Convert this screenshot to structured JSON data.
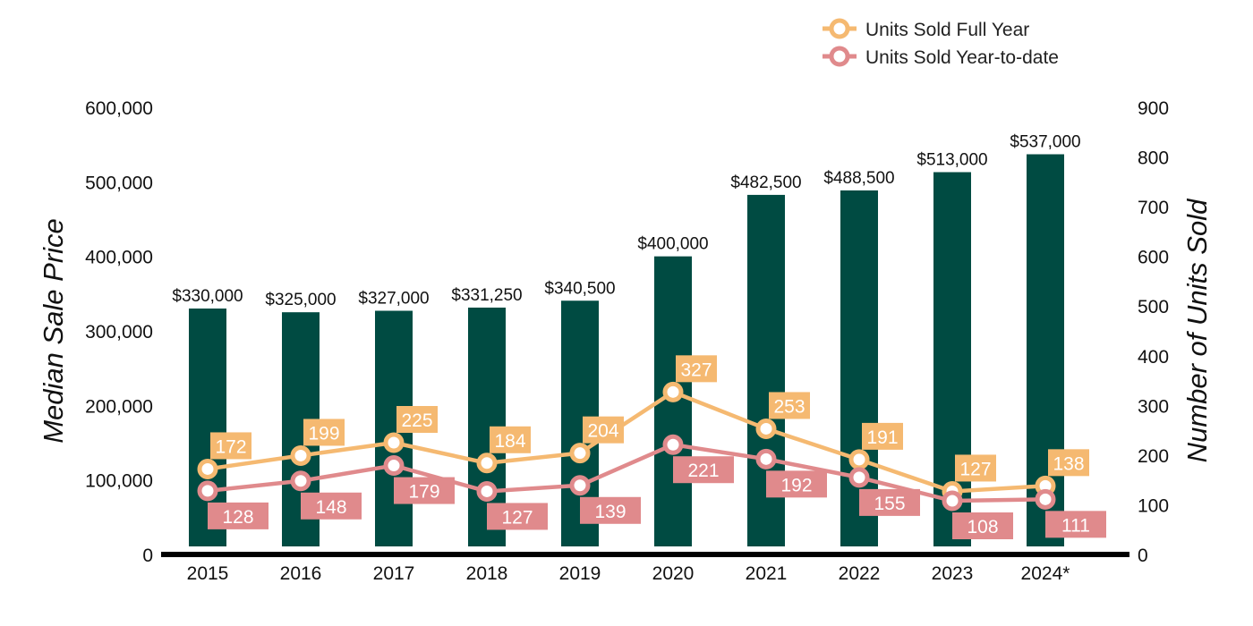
{
  "chart_data": {
    "type": "bar",
    "categories": [
      "2015",
      "2016",
      "2017",
      "2018",
      "2019",
      "2020",
      "2021",
      "2022",
      "2023",
      "2024*"
    ],
    "bars": {
      "values": [
        330000,
        325000,
        327000,
        331250,
        340500,
        400000,
        482500,
        488500,
        513000,
        537000
      ],
      "labels": [
        "$330,000",
        "$325,000",
        "$327,000",
        "$331,250",
        "$340,500",
        "$400,000",
        "$482,500",
        "$488,500",
        "$513,000",
        "$537,000"
      ],
      "color": "#004b42"
    },
    "series": [
      {
        "name": "Units Sold Full Year",
        "type": "line",
        "axis": "right",
        "values": [
          172,
          199,
          225,
          184,
          204,
          327,
          253,
          191,
          127,
          138
        ],
        "color": "#f5b971"
      },
      {
        "name": "Units Sold Year-to-date",
        "type": "line",
        "axis": "right",
        "values": [
          128,
          148,
          179,
          127,
          139,
          221,
          192,
          155,
          108,
          111
        ],
        "color": "#e08a8c"
      }
    ],
    "ylabel": "Median Sale Price",
    "y2label": "Number of Units Sold",
    "ylim": [
      0,
      600000
    ],
    "y2lim": [
      0,
      900
    ],
    "yticks": [
      "0",
      "100,000",
      "200,000",
      "300,000",
      "400,000",
      "500,000",
      "600,000"
    ],
    "y2ticks": [
      "0",
      "100",
      "200",
      "300",
      "400",
      "500",
      "600",
      "700",
      "800",
      "900"
    ],
    "legend_position": "top-right",
    "grid": false
  }
}
